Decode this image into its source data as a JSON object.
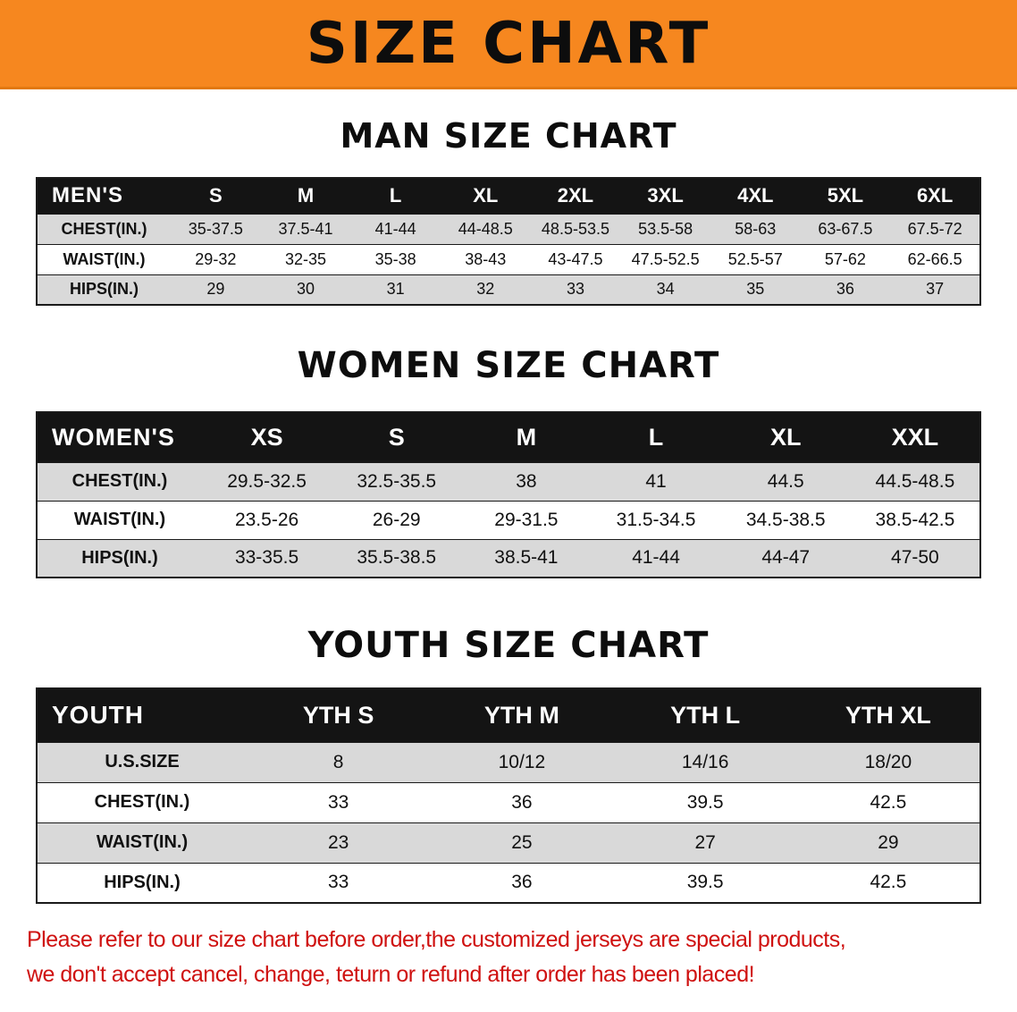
{
  "banner": {
    "title": "SIZE CHART"
  },
  "colors": {
    "banner_bg": "#f6871f",
    "banner_edge": "#e2790e",
    "header_bg": "#141414",
    "row_alt": "#d9d9d9",
    "footer_text": "#cf1110"
  },
  "sections": [
    {
      "heading": "MAN SIZE CHART",
      "header_label": "MEN'S",
      "sizes": [
        "S",
        "M",
        "L",
        "XL",
        "2XL",
        "3XL",
        "4XL",
        "5XL",
        "6XL"
      ],
      "rows": [
        {
          "label": "CHEST(IN.)",
          "values": [
            "35-37.5",
            "37.5-41",
            "41-44",
            "44-48.5",
            "48.5-53.5",
            "53.5-58",
            "58-63",
            "63-67.5",
            "67.5-72"
          ]
        },
        {
          "label": "WAIST(IN.)",
          "values": [
            "29-32",
            "32-35",
            "35-38",
            "38-43",
            "43-47.5",
            "47.5-52.5",
            "52.5-57",
            "57-62",
            "62-66.5"
          ]
        },
        {
          "label": "HIPS(IN.)",
          "values": [
            "29",
            "30",
            "31",
            "32",
            "33",
            "34",
            "35",
            "36",
            "37"
          ]
        }
      ]
    },
    {
      "heading": "WOMEN SIZE CHART",
      "header_label": "WOMEN'S",
      "sizes": [
        "XS",
        "S",
        "M",
        "L",
        "XL",
        "XXL"
      ],
      "rows": [
        {
          "label": "CHEST(IN.)",
          "values": [
            "29.5-32.5",
            "32.5-35.5",
            "38",
            "41",
            "44.5",
            "44.5-48.5"
          ]
        },
        {
          "label": "WAIST(IN.)",
          "values": [
            "23.5-26",
            "26-29",
            "29-31.5",
            "31.5-34.5",
            "34.5-38.5",
            "38.5-42.5"
          ]
        },
        {
          "label": "HIPS(IN.)",
          "values": [
            "33-35.5",
            "35.5-38.5",
            "38.5-41",
            "41-44",
            "44-47",
            "47-50"
          ]
        }
      ]
    },
    {
      "heading": "YOUTH SIZE CHART",
      "header_label": "YOUTH",
      "sizes": [
        "YTH S",
        "YTH M",
        "YTH L",
        "YTH XL"
      ],
      "rows": [
        {
          "label": "U.S.SIZE",
          "values": [
            "8",
            "10/12",
            "14/16",
            "18/20"
          ]
        },
        {
          "label": "CHEST(IN.)",
          "values": [
            "33",
            "36",
            "39.5",
            "42.5"
          ]
        },
        {
          "label": "WAIST(IN.)",
          "values": [
            "23",
            "25",
            "27",
            "29"
          ]
        },
        {
          "label": "HIPS(IN.)",
          "values": [
            "33",
            "36",
            "39.5",
            "42.5"
          ]
        }
      ]
    }
  ],
  "footer": {
    "lines": [
      "Please refer to our size chart before order,the customized jerseys are special products,",
      "we don't accept cancel, change, teturn or refund after order has been placed!"
    ]
  }
}
